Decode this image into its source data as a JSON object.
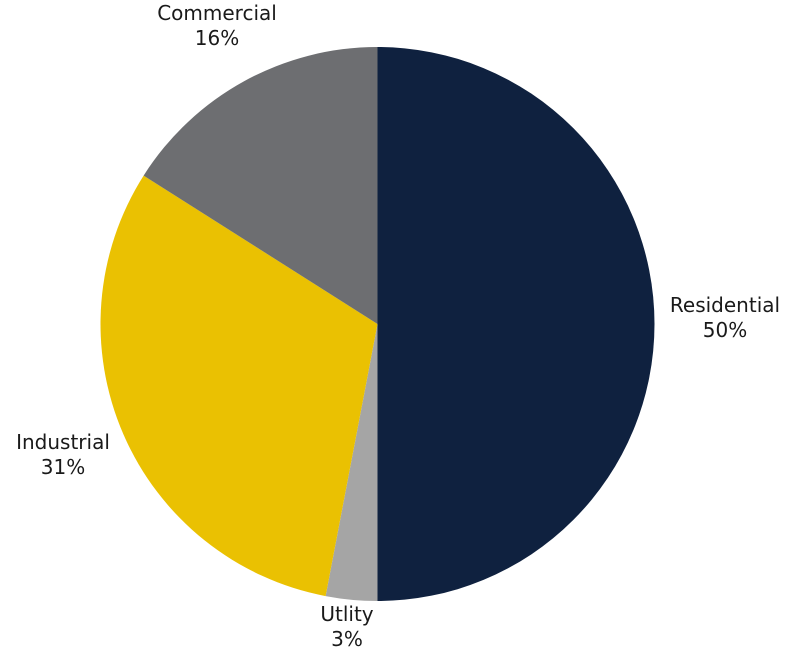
{
  "chart_data": {
    "type": "pie",
    "title": "",
    "slices": [
      {
        "label": "Residential",
        "value": 50,
        "value_label": "50%",
        "color": "#0f213f"
      },
      {
        "label": "Utlity",
        "value": 3,
        "value_label": "3%",
        "color": "#a5a5a5"
      },
      {
        "label": "Industrial",
        "value": 31,
        "value_label": "31%",
        "color": "#eac102"
      },
      {
        "label": "Commercial",
        "value": 16,
        "value_label": "16%",
        "color": "#6d6e71"
      }
    ],
    "start": "12 o'clock",
    "direction": "clockwise",
    "legend": "none",
    "labels": "outside"
  }
}
